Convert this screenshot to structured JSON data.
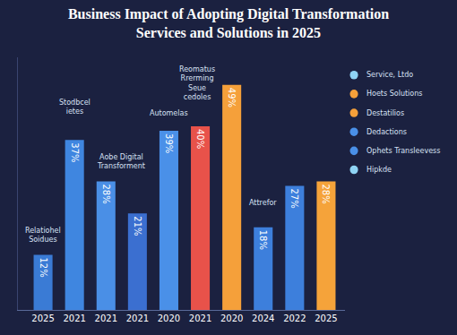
{
  "chart_data": {
    "type": "bar",
    "title": "Business Impact of Adopting Digital Transformation Services and Solutions in 2025",
    "categories": [
      "2025",
      "2021",
      "2021",
      "2021",
      "2020",
      "2021",
      "2020",
      "2024",
      "2022",
      "2025"
    ],
    "values": [
      12,
      37,
      28,
      21,
      39,
      40,
      49,
      18,
      27,
      28
    ],
    "value_labels": [
      "12%",
      "37%",
      "28%",
      "21%",
      "39%",
      "40%",
      "49%",
      "18%",
      "27%",
      "28%"
    ],
    "colors": [
      "#3a7bd5",
      "#3f86e0",
      "#4a8fe6",
      "#3b6fd0",
      "#4a90e8",
      "#e8524a",
      "#f5a03a",
      "#3d7fdc",
      "#3d7fdc",
      "#f5a33a"
    ],
    "ylim": [
      0,
      55
    ],
    "data_labels": true,
    "tick_labels": "x",
    "grid": false,
    "annotations": [
      "Relatiohel Soidues",
      "Stodbcel ietes",
      "Aobe Digital Transforment",
      "Automelas",
      "Reomatus Rrerming Seue cedoles",
      "Attrefor"
    ],
    "notes": [
      "Service, Ltdo",
      "Hoets Solutions",
      "Destatilios",
      "Dedactions",
      "Ophets Transleevess",
      "Hipkde"
    ]
  }
}
